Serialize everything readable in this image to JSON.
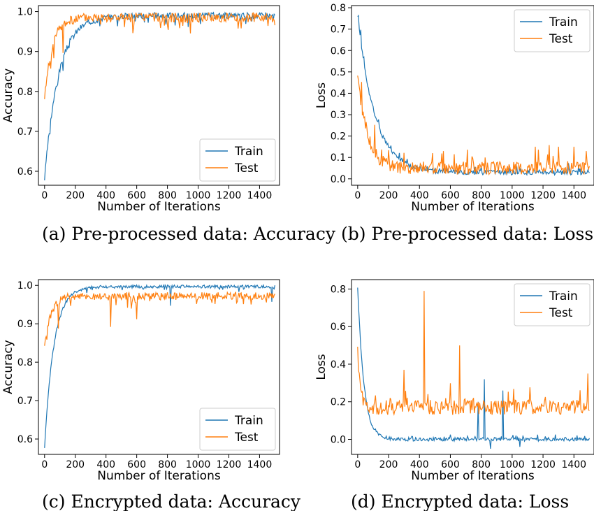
{
  "colors": {
    "train": "#1f77b4",
    "test": "#ff7f0e"
  },
  "chart_data": [
    {
      "type": "line",
      "caption": "(a) Pre-processed data: Accuracy",
      "xlabel": "Number of Iterations",
      "ylabel": "Accuracy",
      "xlim": [
        -40,
        1530
      ],
      "ylim": [
        0.565,
        1.015
      ],
      "xticks": [
        0,
        200,
        400,
        600,
        800,
        1000,
        1200,
        1400
      ],
      "yticks": [
        0.6,
        0.7,
        0.8,
        0.9,
        1.0
      ],
      "ytick_labels": [
        "0.6",
        "0.7",
        "0.8",
        "0.9",
        "1.0"
      ],
      "legend": "lower-right",
      "series": [
        {
          "name": "Train",
          "color": "#1f77b4",
          "kind": "rise",
          "start": 0.58,
          "plateau": 0.99,
          "tau": 90,
          "noise": 0.008,
          "spikes": [],
          "x": [
            0,
            1500
          ]
        },
        {
          "name": "Test",
          "color": "#ff7f0e",
          "kind": "rise",
          "start": 0.78,
          "plateau": 0.985,
          "tau": 50,
          "noise": 0.012,
          "spikes": [
            [
              120,
              -0.07
            ],
            [
              60,
              -0.04
            ],
            [
              780,
              -0.02
            ]
          ],
          "x": [
            0,
            1500
          ]
        }
      ]
    },
    {
      "type": "line",
      "caption": "(b) Pre-processed data: Loss",
      "xlabel": "Number of Iterations",
      "ylabel": "Loss",
      "xlim": [
        -40,
        1530
      ],
      "ylim": [
        -0.03,
        0.81
      ],
      "xticks": [
        0,
        200,
        400,
        600,
        800,
        1000,
        1200,
        1400
      ],
      "yticks": [
        0.0,
        0.1,
        0.2,
        0.3,
        0.4,
        0.5,
        0.6,
        0.7,
        0.8
      ],
      "ytick_labels": [
        "0.0",
        "0.1",
        "0.2",
        "0.3",
        "0.4",
        "0.5",
        "0.6",
        "0.7",
        "0.8"
      ],
      "legend": "top-right",
      "series": [
        {
          "name": "Train",
          "color": "#1f77b4",
          "kind": "decay",
          "start": 0.77,
          "plateau": 0.03,
          "tau": 110,
          "noise": 0.012,
          "spikes": [
            [
              20,
              0.05
            ]
          ],
          "x": [
            0,
            1500
          ]
        },
        {
          "name": "Test",
          "color": "#ff7f0e",
          "kind": "decay",
          "start": 0.5,
          "plateau": 0.05,
          "tau": 60,
          "noise": 0.03,
          "spikes": [
            [
              110,
              0.13
            ],
            [
              1300,
              0.1
            ],
            [
              1400,
              0.1
            ],
            [
              1150,
              0.1
            ]
          ],
          "x": [
            0,
            1500
          ]
        }
      ]
    },
    {
      "type": "line",
      "caption": "(c) Encrypted data: Accuracy",
      "xlabel": "Number of Iterations",
      "ylabel": "Accuracy",
      "xlim": [
        -40,
        1530
      ],
      "ylim": [
        0.56,
        1.015
      ],
      "xticks": [
        0,
        200,
        400,
        600,
        800,
        1000,
        1200,
        1400
      ],
      "yticks": [
        0.6,
        0.7,
        0.8,
        0.9,
        1.0
      ],
      "ytick_labels": [
        "0.6",
        "0.7",
        "0.8",
        "0.9",
        "1.0"
      ],
      "legend": "lower-right",
      "series": [
        {
          "name": "Train",
          "color": "#1f77b4",
          "kind": "rise",
          "start": 0.575,
          "plateau": 0.997,
          "tau": 60,
          "noise": 0.004,
          "spikes": [
            [
              820,
              -0.05
            ],
            [
              1480,
              -0.04
            ]
          ],
          "x": [
            0,
            1500
          ]
        },
        {
          "name": "Test",
          "color": "#ff7f0e",
          "kind": "rise",
          "start": 0.835,
          "plateau": 0.972,
          "tau": 40,
          "noise": 0.01,
          "spikes": [
            [
              430,
              -0.08
            ],
            [
              600,
              -0.06
            ],
            [
              90,
              -0.07
            ]
          ],
          "x": [
            0,
            1500
          ]
        }
      ]
    },
    {
      "type": "line",
      "caption": "(d) Encrypted data: Loss",
      "xlabel": "Number of Iterations",
      "ylabel": "Loss",
      "xlim": [
        -40,
        1530
      ],
      "ylim": [
        -0.08,
        0.85
      ],
      "xticks": [
        0,
        200,
        400,
        600,
        800,
        1000,
        1200,
        1400
      ],
      "yticks": [
        0.0,
        0.2,
        0.4,
        0.6,
        0.8
      ],
      "ytick_labels": [
        "0.0",
        "0.2",
        "0.4",
        "0.6",
        "0.8"
      ],
      "legend": "top-right",
      "series": [
        {
          "name": "Train",
          "color": "#1f77b4",
          "kind": "decay",
          "start": 0.81,
          "plateau": 0.0,
          "tau": 40,
          "noise": 0.01,
          "spikes": [
            [
              820,
              0.32
            ],
            [
              940,
              0.26
            ],
            [
              780,
              0.2
            ],
            [
              860,
              -0.05
            ],
            [
              1050,
              -0.04
            ]
          ],
          "x": [
            0,
            1500
          ]
        },
        {
          "name": "Test",
          "color": "#ff7f0e",
          "kind": "flat",
          "start": 0.43,
          "plateau": 0.17,
          "tau": 20,
          "noise": 0.04,
          "spikes": [
            [
              430,
              0.62
            ],
            [
              660,
              0.33
            ],
            [
              1490,
              0.18
            ],
            [
              300,
              0.2
            ]
          ],
          "x": [
            0,
            1500
          ]
        }
      ]
    }
  ]
}
